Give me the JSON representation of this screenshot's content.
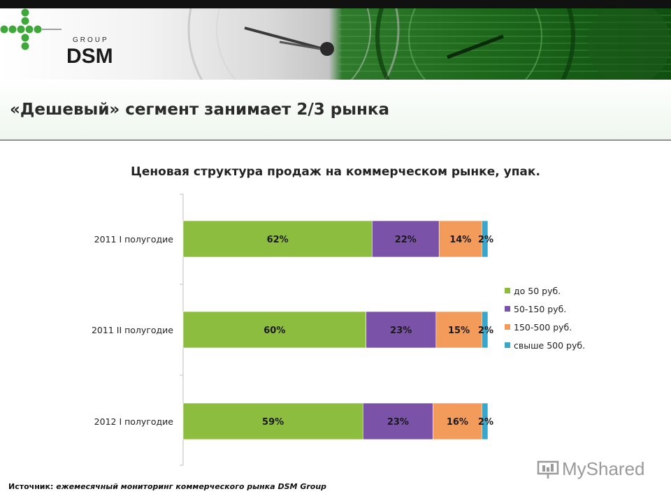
{
  "header": {
    "logo_group": "GROUP",
    "logo_brand": "DSM"
  },
  "headline": "«Дешевый» сегмент занимает 2/3 рынка",
  "chart_data": {
    "type": "bar",
    "orientation": "horizontal",
    "stacked": true,
    "title": "Ценовая структура продаж на коммерческом рынке, упак.",
    "categories": [
      "2011 I полугодие",
      "2011 II полугодие",
      "2012 I полугодие"
    ],
    "series": [
      {
        "name": "до 50 руб.",
        "values": [
          62,
          60,
          59
        ],
        "labels": [
          "62%",
          "60%",
          "59%"
        ],
        "color": "#8cbd3f"
      },
      {
        "name": "50-150 руб.",
        "values": [
          22,
          23,
          23
        ],
        "labels": [
          "22%",
          "23%",
          "23%"
        ],
        "color": "#7a52a8"
      },
      {
        "name": "150-500 руб.",
        "values": [
          14,
          15,
          16
        ],
        "labels": [
          "14%",
          "15%",
          "16%"
        ],
        "color": "#f29b5a"
      },
      {
        "name": "свыше 500 руб.",
        "values": [
          2,
          2,
          2
        ],
        "labels": [
          "2%",
          "2%",
          "2%"
        ],
        "color": "#3aa6c9"
      }
    ],
    "xlim": [
      0,
      100
    ],
    "legend_position": "right",
    "grid": false
  },
  "source": {
    "label": "Источник:",
    "text": "ежемесячный мониторинг коммерческого рынка DSM Group"
  },
  "watermark": "MyShared"
}
